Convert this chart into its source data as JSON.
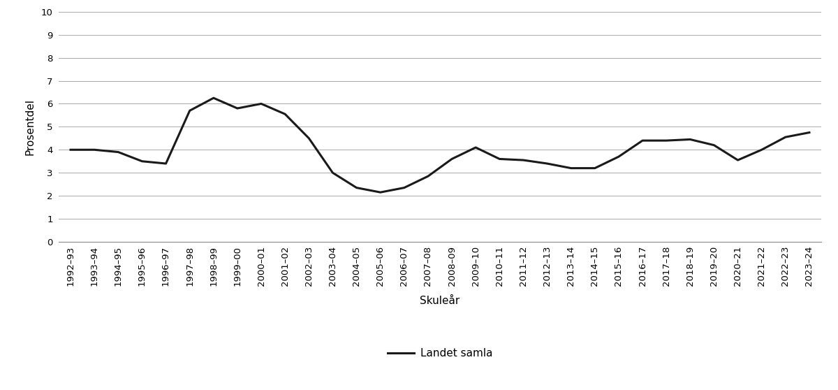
{
  "x_labels": [
    "1992–93",
    "1993–94",
    "1994–95",
    "1995–96",
    "1996–97",
    "1997–98",
    "1998–99",
    "1999–00",
    "2000–01",
    "2001–02",
    "2002–03",
    "2003–04",
    "2004–05",
    "2005–06",
    "2006–07",
    "2007–08",
    "2008–09",
    "2009–10",
    "2010–11",
    "2011–12",
    "2012–13",
    "2013–14",
    "2014–15",
    "2015–16",
    "2016–17",
    "2017–18",
    "2018–19",
    "2019–20",
    "2020–21",
    "2021–22",
    "2022–23",
    "2023–24"
  ],
  "values": [
    4.0,
    4.0,
    3.9,
    3.5,
    3.4,
    5.7,
    6.25,
    5.8,
    6.0,
    5.55,
    4.5,
    3.0,
    2.35,
    2.15,
    2.35,
    2.85,
    3.6,
    4.1,
    3.6,
    3.55,
    3.4,
    3.2,
    3.2,
    3.7,
    4.4,
    4.4,
    4.45,
    4.2,
    3.55,
    4.0,
    4.55,
    4.75
  ],
  "ylabel": "Prosentdel",
  "xlabel": "Skuleår",
  "legend_label": "Landet samla",
  "ylim": [
    0,
    10
  ],
  "yticks": [
    0,
    1,
    2,
    3,
    4,
    5,
    6,
    7,
    8,
    9,
    10
  ],
  "line_color": "#1a1a1a",
  "line_width": 2.2,
  "background_color": "#ffffff",
  "grid_color": "#aaaaaa",
  "ylabel_fontsize": 11,
  "xlabel_fontsize": 11,
  "tick_fontsize": 9.5,
  "legend_fontsize": 11
}
